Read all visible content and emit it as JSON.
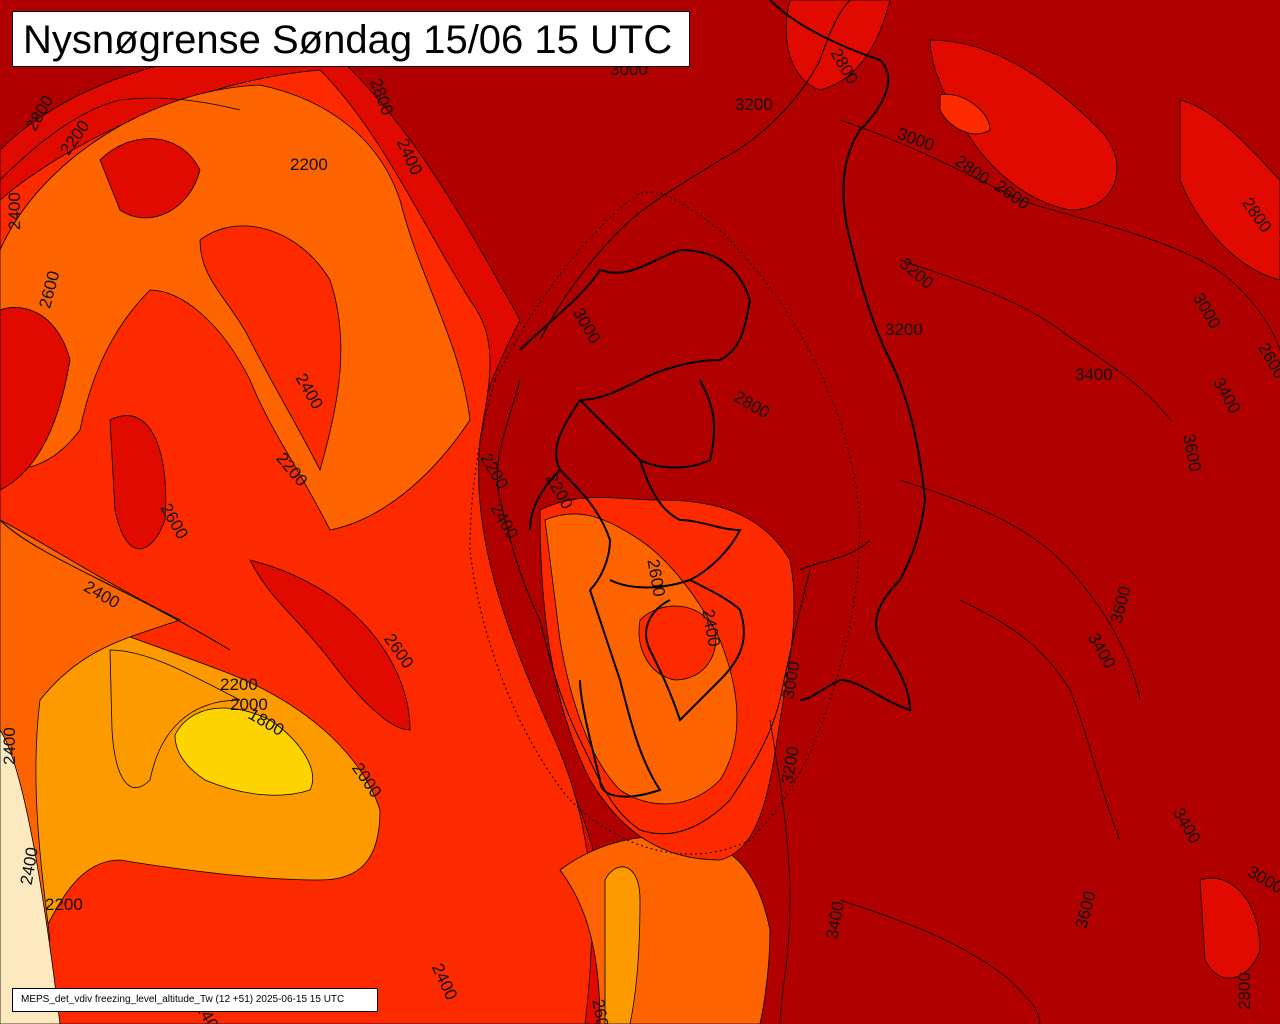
{
  "title": "Nysnøgrense Søndag 15/06 15 UTC",
  "footer": "MEPS_det_vdiv freezing_level_altitude_Tw (12 +51) 2025-06-15 15 UTC",
  "colors": {
    "below_1800": "#fde9c0",
    "1800_2000": "#fdd400",
    "2000_2200": "#fd9a00",
    "2200_2400": "#fd6400",
    "2400_2600": "#fd2a00",
    "2600_2800": "#e00a00",
    "above_2800": "#b00000"
  },
  "contour_labels": [
    "2200",
    "2200",
    "2200",
    "2200",
    "2200",
    "2200",
    "2200",
    "2400",
    "2400",
    "2400",
    "2400",
    "2400",
    "2400",
    "2400",
    "2400",
    "2400",
    "2400",
    "2600",
    "2600",
    "2600",
    "2600",
    "2600",
    "2600",
    "2600",
    "2800",
    "2800",
    "2800",
    "2800",
    "2800",
    "2800",
    "2800",
    "3000",
    "3000",
    "3000",
    "3000",
    "3000",
    "3000",
    "3200",
    "3200",
    "3200",
    "3200",
    "3400",
    "3400",
    "3400",
    "3400",
    "3400",
    "3600",
    "3600",
    "3600",
    "2000",
    "2000",
    "1800"
  ]
}
